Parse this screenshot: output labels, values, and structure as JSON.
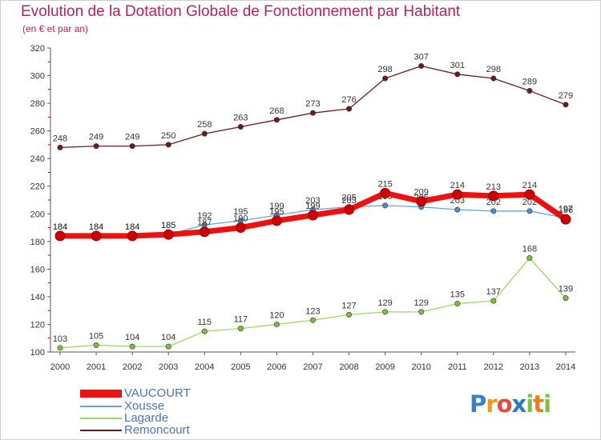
{
  "chart_data": {
    "type": "line",
    "title": "Evolution de la Dotation Globale de Fonctionnement par Habitant",
    "subtitle": "(en € et par an)",
    "xlabel": "",
    "ylabel": "",
    "ylim": [
      100,
      320
    ],
    "yticks": [
      100,
      120,
      140,
      160,
      180,
      200,
      220,
      240,
      260,
      280,
      300,
      320
    ],
    "categories": [
      "2000",
      "2001",
      "2002",
      "2003",
      "2004",
      "2005",
      "2006",
      "2007",
      "2008",
      "2009",
      "2010",
      "2011",
      "2012",
      "2013",
      "2014"
    ],
    "series": [
      {
        "name": "Remoncourt",
        "color": "#6e1a1a",
        "dot": "#6e1a1a",
        "values": [
          248,
          249,
          249,
          250,
          258,
          263,
          268,
          273,
          276,
          298,
          307,
          301,
          298,
          289,
          279
        ]
      },
      {
        "name": "Lagarde",
        "color": "#9fd66a",
        "dot": "#7cc043",
        "values": [
          103,
          105,
          104,
          104,
          115,
          117,
          120,
          123,
          127,
          129,
          129,
          135,
          137,
          168,
          139
        ]
      },
      {
        "name": "Xousse",
        "color": "#6aa3d5",
        "dot": "#4f8fcf",
        "values": [
          184,
          184,
          184,
          185,
          192,
          195,
          199,
          203,
          205,
          206,
          205,
          203,
          202,
          202,
          197
        ]
      },
      {
        "name": "VAUCOURT",
        "color": "#ee1111",
        "dot": "#cc0000",
        "values": [
          184,
          184,
          184,
          185,
          187,
          190,
          195,
          199,
          203,
          215,
          209,
          214,
          213,
          214,
          196
        ]
      }
    ],
    "legend": [
      "VAUCOURT",
      "Xousse",
      "Lagarde",
      "Remoncourt"
    ],
    "legend_position": "bottom-left",
    "grid": false
  },
  "logo": {
    "letters": [
      "P",
      "r",
      "o",
      "x",
      "i",
      "t",
      "i"
    ]
  }
}
